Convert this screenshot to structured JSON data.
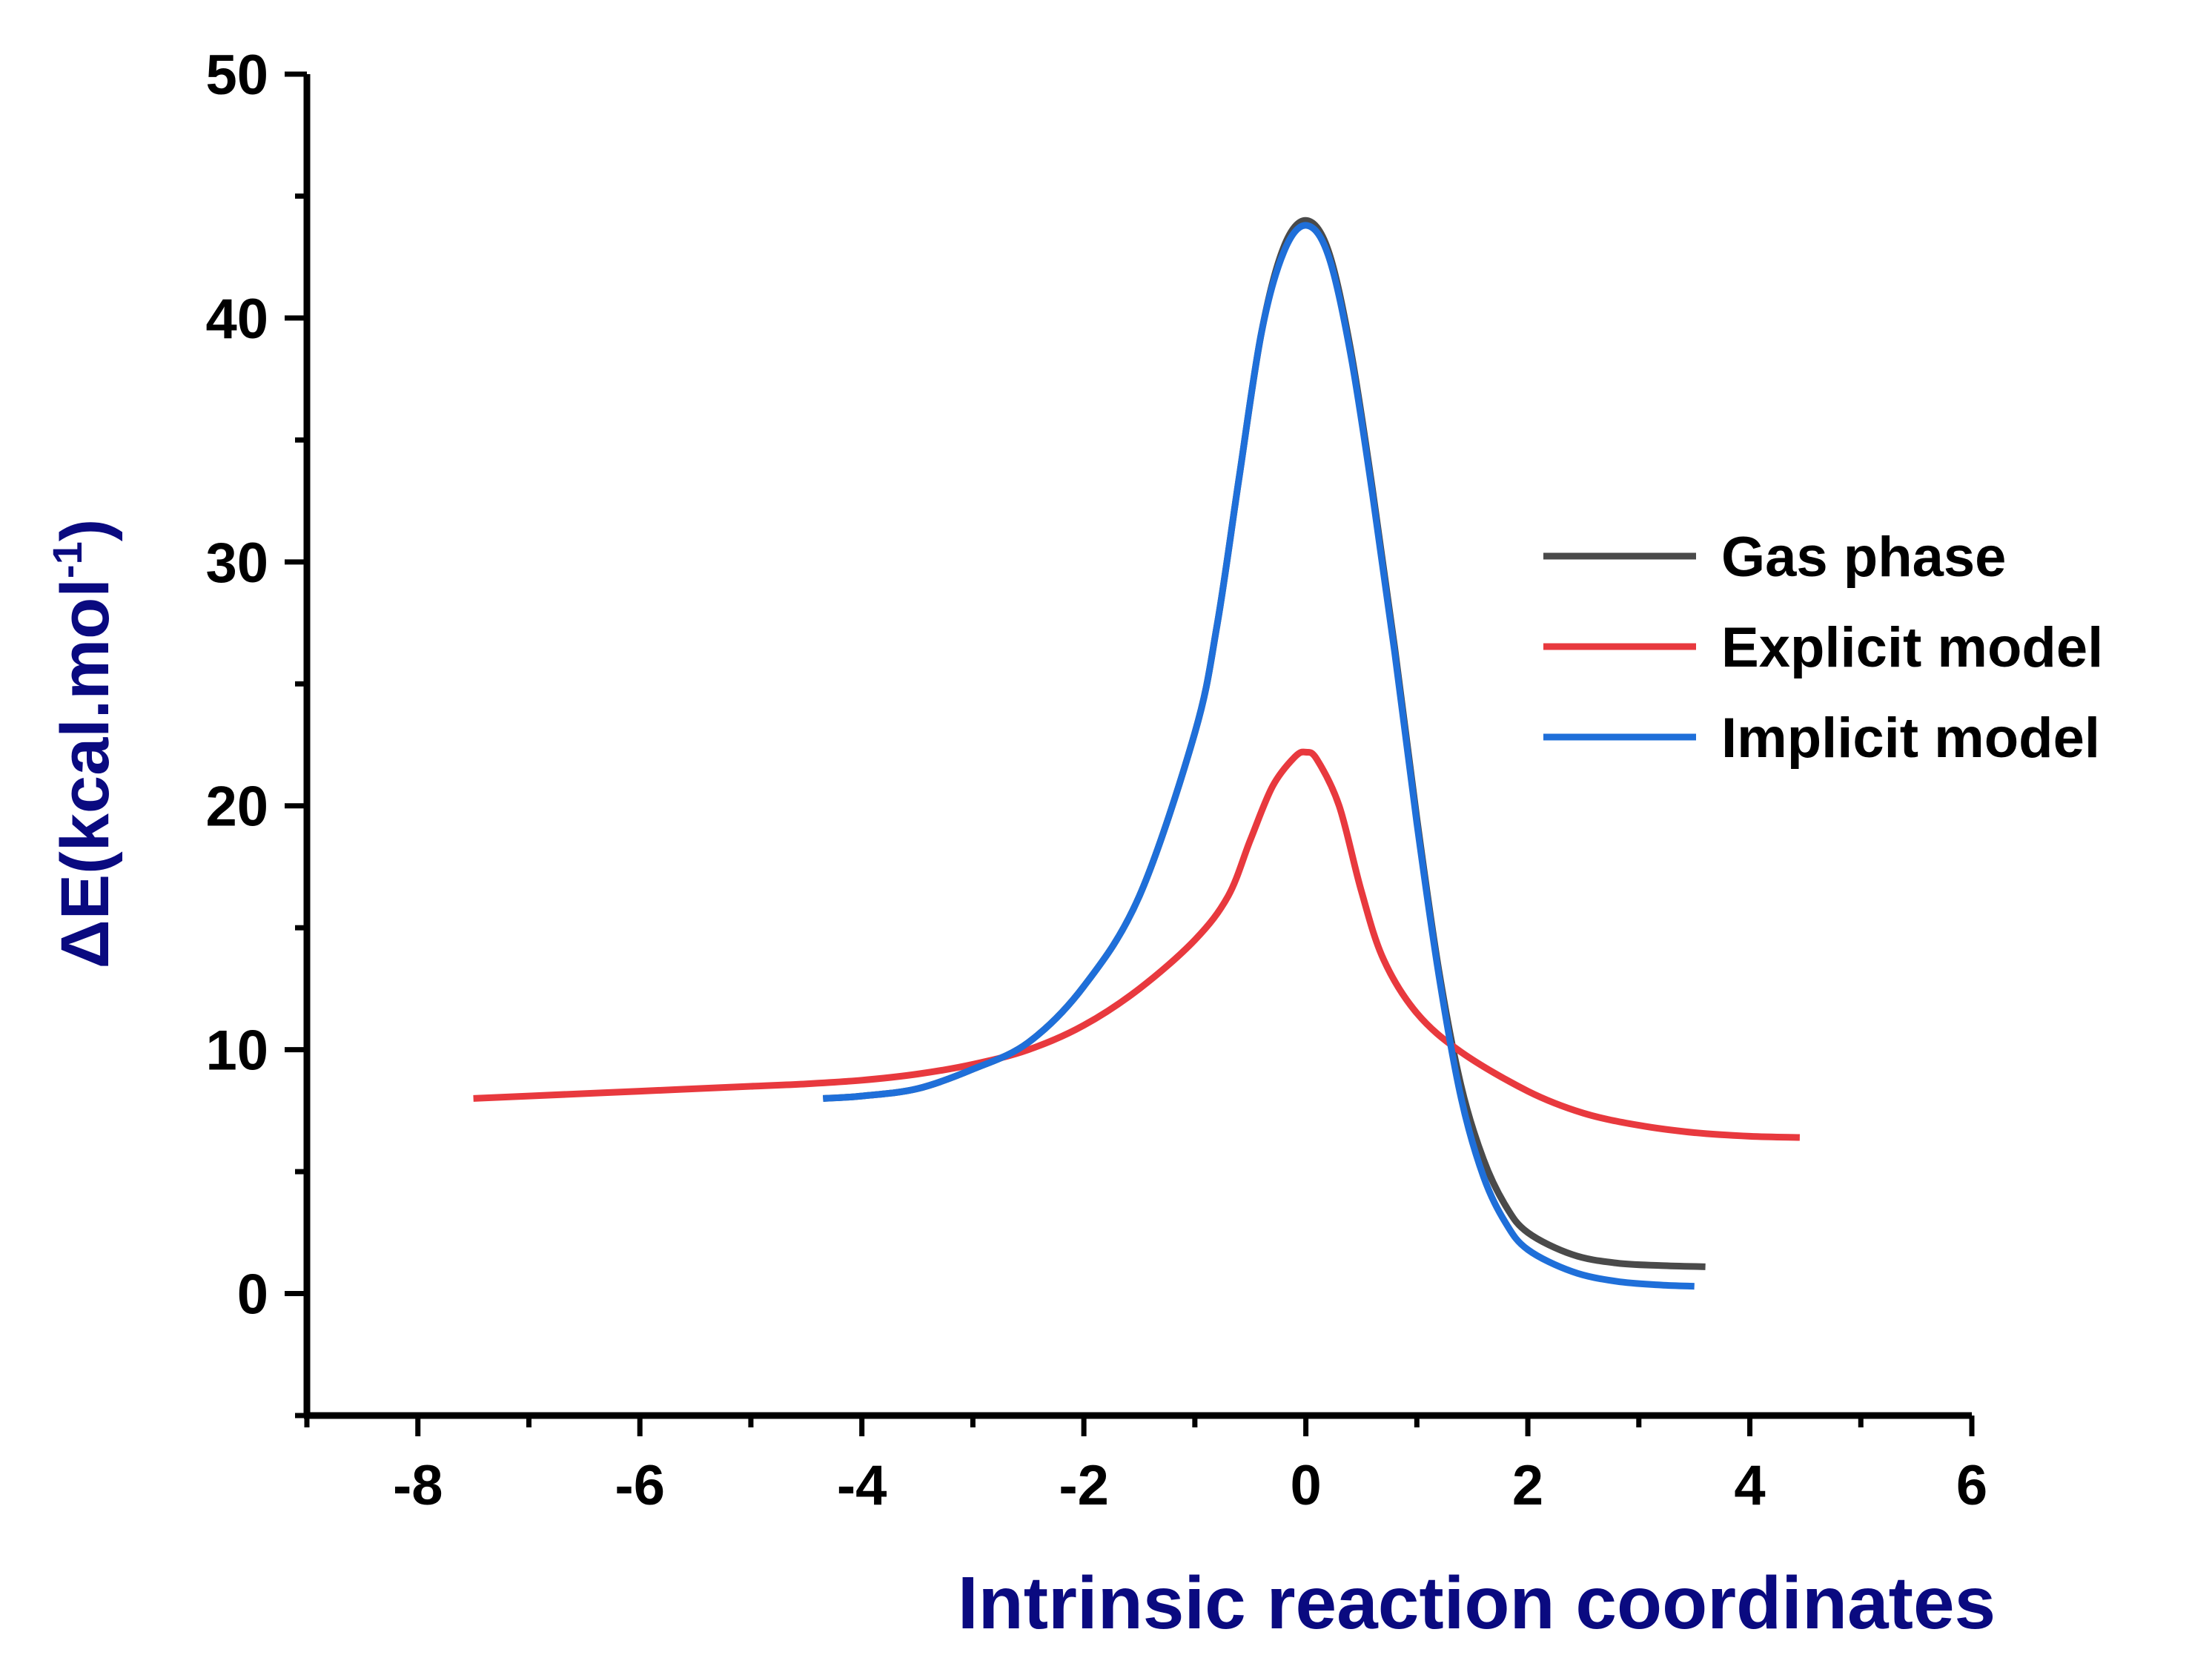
{
  "chart_data": {
    "type": "line",
    "title": "",
    "xlabel": "Intrinsic reaction coordinates",
    "ylabel": "ΔE(kcal.mol",
    "ylabel_superscript": "-1",
    "ylabel_close": ")",
    "xlim": [
      -9,
      6
    ],
    "ylim": [
      -5,
      50
    ],
    "x_ticks": [
      -8,
      -6,
      -4,
      -2,
      0,
      2,
      4,
      6
    ],
    "x_tick_labels": [
      "-8",
      "-6",
      "-4",
      "-2",
      "0",
      "2",
      "4",
      "6"
    ],
    "y_ticks": [
      0,
      10,
      20,
      30,
      40,
      50
    ],
    "y_tick_labels": [
      "0",
      "10",
      "20",
      "30",
      "40",
      "50"
    ],
    "grid": false,
    "legend_position": "right",
    "series": [
      {
        "name": "Gas phase",
        "color": "#4a4a4a",
        "points": [
          [
            -4.35,
            8.0
          ],
          [
            -4.0,
            8.1
          ],
          [
            -3.5,
            8.4
          ],
          [
            -3.0,
            9.2
          ],
          [
            -2.5,
            10.3
          ],
          [
            -2.0,
            12.6
          ],
          [
            -1.5,
            16.3
          ],
          [
            -1.0,
            23.0
          ],
          [
            -0.8,
            27.4
          ],
          [
            -0.6,
            33.5
          ],
          [
            -0.4,
            39.4
          ],
          [
            -0.2,
            42.9
          ],
          [
            0.0,
            44.0
          ],
          [
            0.2,
            42.8
          ],
          [
            0.4,
            38.8
          ],
          [
            0.6,
            33.0
          ],
          [
            0.8,
            26.5
          ],
          [
            1.0,
            19.5
          ],
          [
            1.2,
            13.2
          ],
          [
            1.4,
            8.5
          ],
          [
            1.6,
            5.5
          ],
          [
            1.8,
            3.6
          ],
          [
            2.0,
            2.5
          ],
          [
            2.4,
            1.6
          ],
          [
            2.8,
            1.25
          ],
          [
            3.2,
            1.15
          ],
          [
            3.6,
            1.1
          ]
        ]
      },
      {
        "name": "Explicit model",
        "color": "#e8393e",
        "points": [
          [
            -7.5,
            8.0
          ],
          [
            -7.0,
            8.1
          ],
          [
            -6.0,
            8.3
          ],
          [
            -5.0,
            8.5
          ],
          [
            -4.5,
            8.6
          ],
          [
            -4.0,
            8.75
          ],
          [
            -3.5,
            9.0
          ],
          [
            -3.0,
            9.4
          ],
          [
            -2.5,
            10.0
          ],
          [
            -2.0,
            11.0
          ],
          [
            -1.5,
            12.5
          ],
          [
            -1.0,
            14.5
          ],
          [
            -0.7,
            16.3
          ],
          [
            -0.5,
            18.6
          ],
          [
            -0.3,
            20.8
          ],
          [
            -0.1,
            22.0
          ],
          [
            0.0,
            22.2
          ],
          [
            0.1,
            21.9
          ],
          [
            0.3,
            20.0
          ],
          [
            0.5,
            16.5
          ],
          [
            0.7,
            13.7
          ],
          [
            1.0,
            11.5
          ],
          [
            1.4,
            9.9
          ],
          [
            2.0,
            8.3
          ],
          [
            2.5,
            7.4
          ],
          [
            3.0,
            6.9
          ],
          [
            3.5,
            6.6
          ],
          [
            4.0,
            6.45
          ],
          [
            4.45,
            6.4
          ]
        ]
      },
      {
        "name": "Implicit model",
        "color": "#1f6fd9",
        "points": [
          [
            -4.35,
            8.0
          ],
          [
            -4.0,
            8.1
          ],
          [
            -3.5,
            8.4
          ],
          [
            -3.0,
            9.2
          ],
          [
            -2.5,
            10.3
          ],
          [
            -2.0,
            12.6
          ],
          [
            -1.5,
            16.3
          ],
          [
            -1.0,
            23.0
          ],
          [
            -0.8,
            27.4
          ],
          [
            -0.6,
            33.5
          ],
          [
            -0.4,
            39.4
          ],
          [
            -0.2,
            42.7
          ],
          [
            0.0,
            43.8
          ],
          [
            0.2,
            42.6
          ],
          [
            0.4,
            38.6
          ],
          [
            0.6,
            32.8
          ],
          [
            0.8,
            26.3
          ],
          [
            1.0,
            19.3
          ],
          [
            1.2,
            13.0
          ],
          [
            1.4,
            8.0
          ],
          [
            1.6,
            4.8
          ],
          [
            1.8,
            2.9
          ],
          [
            2.0,
            1.8
          ],
          [
            2.4,
            0.9
          ],
          [
            2.8,
            0.5
          ],
          [
            3.2,
            0.35
          ],
          [
            3.5,
            0.3
          ]
        ]
      }
    ]
  }
}
